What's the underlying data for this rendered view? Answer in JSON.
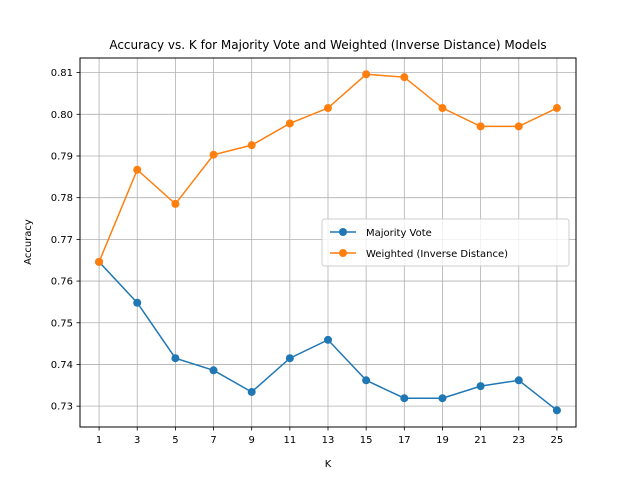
{
  "chart_data": {
    "type": "line",
    "title": "Accuracy vs. K for Majority Vote and Weighted (Inverse Distance) Models",
    "xlabel": "K",
    "ylabel": "Accuracy",
    "x": [
      1,
      3,
      5,
      7,
      9,
      11,
      13,
      15,
      17,
      19,
      21,
      23,
      25
    ],
    "xticks": [
      "1",
      "3",
      "5",
      "7",
      "9",
      "11",
      "13",
      "15",
      "17",
      "19",
      "21",
      "23",
      "25"
    ],
    "yticks": [
      "0.73",
      "0.74",
      "0.75",
      "0.76",
      "0.77",
      "0.78",
      "0.79",
      "0.80",
      "0.81"
    ],
    "xlim": [
      0,
      26
    ],
    "ylim": [
      0.725,
      0.8135
    ],
    "grid": true,
    "legend_position": "center-right",
    "series": [
      {
        "name": "Majority Vote",
        "color": "#1f77b4",
        "values": [
          0.7646,
          0.7548,
          0.7415,
          0.7386,
          0.7334,
          0.7415,
          0.7459,
          0.7362,
          0.7319,
          0.7319,
          0.7348,
          0.7362,
          0.729
        ]
      },
      {
        "name": "Weighted (Inverse Distance)",
        "color": "#ff7f0e",
        "values": [
          0.7646,
          0.7867,
          0.7785,
          0.7903,
          0.7926,
          0.7978,
          0.8015,
          0.8096,
          0.8089,
          0.8015,
          0.7971,
          0.7971,
          0.8015
        ]
      }
    ]
  }
}
